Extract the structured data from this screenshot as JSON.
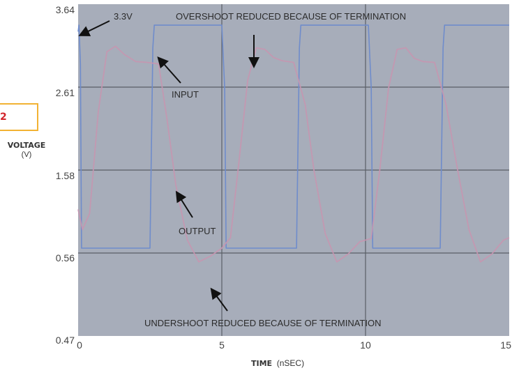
{
  "figure": {
    "number": "2"
  },
  "colors": {
    "plot_background": "#a7adba",
    "input_trace": "#6f8ccb",
    "output_trace": "#c796b0",
    "gridline": "#5a5e66",
    "figure_tag_border": "#f2b233",
    "figure_number": "#d2232a"
  },
  "chart_data": {
    "type": "line",
    "xlabel_bold": "TIME",
    "xlabel_unit": "(nSEC)",
    "ylabel_bold": "VOLTAGE",
    "ylabel_unit": "(V)",
    "x_ticks": [
      "0",
      "5",
      "10",
      "15"
    ],
    "y_ticks": [
      "3.64",
      "2.61",
      "1.58",
      "0.56",
      "0.47"
    ],
    "xlim": [
      0,
      15
    ],
    "grid": true,
    "series": [
      {
        "name": "INPUT",
        "x": [
          0,
          0.03,
          0.08,
          0.12,
          0.2,
          2.5,
          2.6,
          2.65,
          2.8,
          5.0,
          5.1,
          5.15,
          5.3,
          7.6,
          7.7,
          7.75,
          7.9,
          10.1,
          10.2,
          10.25,
          10.4,
          12.6,
          12.7,
          12.75,
          12.9,
          15.0
        ],
        "y": [
          3.3,
          3.38,
          2.9,
          0.62,
          0.62,
          0.62,
          3.1,
          3.38,
          3.38,
          3.38,
          2.6,
          0.62,
          0.62,
          0.62,
          3.1,
          3.38,
          3.38,
          3.38,
          2.6,
          0.62,
          0.62,
          0.62,
          3.1,
          3.38,
          3.38,
          3.38
        ]
      },
      {
        "name": "OUTPUT",
        "x": [
          0,
          0.15,
          0.4,
          0.7,
          1.0,
          1.3,
          1.6,
          2.0,
          2.4,
          2.8,
          3.1,
          3.4,
          3.8,
          4.2,
          4.6,
          5.0,
          5.3,
          5.6,
          5.9,
          6.2,
          6.5,
          6.8,
          7.1,
          7.5,
          7.9,
          8.2,
          8.6,
          9.0,
          9.4,
          9.8,
          10.2,
          10.5,
          10.8,
          11.1,
          11.4,
          11.7,
          12.0,
          12.4,
          12.8,
          13.2,
          13.6,
          14.0,
          14.4,
          14.8,
          15.0
        ],
        "y": [
          1.1,
          0.85,
          1.05,
          2.3,
          3.05,
          3.12,
          3.02,
          2.93,
          2.92,
          2.9,
          2.2,
          1.4,
          0.72,
          0.45,
          0.52,
          0.62,
          0.75,
          1.7,
          2.7,
          3.1,
          3.08,
          2.98,
          2.94,
          2.92,
          2.4,
          1.6,
          0.8,
          0.45,
          0.55,
          0.7,
          0.74,
          1.6,
          2.6,
          3.08,
          3.1,
          2.97,
          2.93,
          2.92,
          2.4,
          1.6,
          0.85,
          0.45,
          0.55,
          0.72,
          0.75
        ]
      }
    ],
    "annotations": [
      {
        "id": "v33",
        "text": "3.3V"
      },
      {
        "id": "overshoot",
        "text": "OVERSHOOT REDUCED BECAUSE OF TERMINATION"
      },
      {
        "id": "input",
        "text": "INPUT"
      },
      {
        "id": "output",
        "text": "OUTPUT"
      },
      {
        "id": "undershoot",
        "text": "UNDERSHOOT REDUCED BECAUSE OF TERMINATION"
      }
    ]
  }
}
